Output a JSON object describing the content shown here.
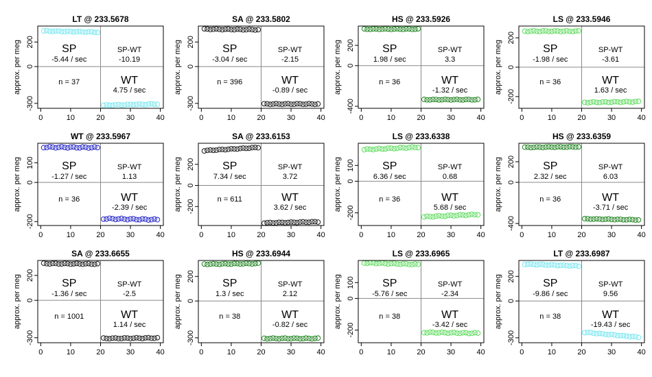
{
  "chart_data": [
    {
      "type": "scatter",
      "title": "LT @ 233.5678",
      "ylabel": "approx. per meg",
      "color": "#7fe8f0",
      "ylim": [
        -340,
        330
      ],
      "yticks": [
        -300,
        0,
        200
      ],
      "xlim": [
        -1,
        41
      ],
      "xticks": [
        0,
        10,
        20,
        30,
        40
      ],
      "sp_label": "SP",
      "sp_rate": "-5.44 / sec",
      "spwt_label": "SP-WT",
      "spwt_value": "-10.19",
      "n_label": "n = 37",
      "wt_label": "WT",
      "wt_rate": "4.75 / sec",
      "sp_points": {
        "x_start": 1,
        "x_end": 19,
        "y_start": 290,
        "y_end": 280
      },
      "wt_points": {
        "x_start": 21,
        "x_end": 39,
        "y_start": -315,
        "y_end": -305
      }
    },
    {
      "type": "scatter",
      "title": "SA @ 233.5802",
      "ylabel": "approx. per meg",
      "color": "#2a2a2a",
      "ylim": [
        -340,
        330
      ],
      "yticks": [
        -300,
        0,
        200
      ],
      "xlim": [
        -1,
        41
      ],
      "xticks": [
        0,
        10,
        20,
        30,
        40
      ],
      "sp_label": "SP",
      "sp_rate": "-3.04 / sec",
      "spwt_label": "SP-WT",
      "spwt_value": "-2.15",
      "n_label": "n = 396",
      "wt_label": "WT",
      "wt_rate": "-0.89 / sec",
      "sp_points": {
        "x_start": 1,
        "x_end": 19,
        "y_start": 305,
        "y_end": 300
      },
      "wt_points": {
        "x_start": 21,
        "x_end": 39,
        "y_start": -305,
        "y_end": -305
      }
    },
    {
      "type": "scatter",
      "title": "HS @ 233.5926",
      "ylabel": "approx. per meg",
      "color": "#2e8b2e",
      "ylim": [
        -420,
        390
      ],
      "yticks": [
        -400,
        0,
        200
      ],
      "xlim": [
        -1,
        41
      ],
      "xticks": [
        0,
        10,
        20,
        30,
        40
      ],
      "sp_points": {
        "x_start": 1,
        "x_end": 19,
        "y_start": 360,
        "y_end": 360
      },
      "wt_points": {
        "x_start": 21,
        "x_end": 39,
        "y_start": -335,
        "y_end": -335
      },
      "sp_label": "SP",
      "sp_rate": "1.98 / sec",
      "spwt_label": "SP-WT",
      "spwt_value": "3.3",
      "n_label": "n = 36",
      "wt_label": "WT",
      "wt_rate": "-1.32 / sec"
    },
    {
      "type": "scatter",
      "title": "LS @ 233.5946",
      "ylabel": "approx. per meg",
      "color": "#66dd66",
      "ylim": [
        -280,
        280
      ],
      "yticks": [
        -200,
        0,
        200
      ],
      "xlim": [
        -1,
        41
      ],
      "xticks": [
        0,
        10,
        20,
        30,
        40
      ],
      "sp_label": "SP",
      "sp_rate": "-1.98 / sec",
      "spwt_label": "SP-WT",
      "spwt_value": "-3.61",
      "n_label": "n = 36",
      "wt_label": "WT",
      "wt_rate": "1.63 / sec",
      "sp_points": {
        "x_start": 1,
        "x_end": 19,
        "y_start": 245,
        "y_end": 245
      },
      "wt_points": {
        "x_start": 21,
        "x_end": 39,
        "y_start": -240,
        "y_end": -235
      }
    },
    {
      "type": "scatter",
      "title": "WT @ 233.5967",
      "ylabel": "approx. per meg",
      "color": "#3333cc",
      "ylim": [
        -220,
        200
      ],
      "yticks": [
        -200,
        0,
        100
      ],
      "xlim": [
        -1,
        41
      ],
      "xticks": [
        0,
        10,
        20,
        30,
        40
      ],
      "sp_label": "SP",
      "sp_rate": "-1.27 / sec",
      "spwt_label": "SP-WT",
      "spwt_value": "1.13",
      "n_label": "n = 36",
      "wt_label": "WT",
      "wt_rate": "-2.39 / sec",
      "sp_points": {
        "x_start": 1,
        "x_end": 19,
        "y_start": 180,
        "y_end": 178
      },
      "wt_points": {
        "x_start": 21,
        "x_end": 39,
        "y_start": -185,
        "y_end": -190
      }
    },
    {
      "type": "scatter",
      "title": "SA @ 233.6153",
      "ylabel": "approx. per meg",
      "color": "#2a2a2a",
      "ylim": [
        -380,
        400
      ],
      "yticks": [
        -200,
        0,
        200
      ],
      "xlim": [
        -1,
        41
      ],
      "xticks": [
        0,
        10,
        20,
        30,
        40
      ],
      "sp_label": "SP",
      "sp_rate": "7.34 / sec",
      "spwt_label": "SP-WT",
      "spwt_value": "3.72",
      "n_label": "n = 611",
      "wt_label": "WT",
      "wt_rate": "3.62 / sec",
      "sp_points": {
        "x_start": 1,
        "x_end": 19,
        "y_start": 330,
        "y_end": 360
      },
      "wt_points": {
        "x_start": 21,
        "x_end": 39,
        "y_start": -355,
        "y_end": -345
      }
    },
    {
      "type": "scatter",
      "title": "LS @ 233.6338",
      "ylabel": "approx. per meg",
      "color": "#66dd66",
      "ylim": [
        -280,
        240
      ],
      "yticks": [
        -200,
        0,
        100
      ],
      "xlim": [
        -1,
        41
      ],
      "xticks": [
        0,
        10,
        20,
        30,
        40
      ],
      "sp_label": "SP",
      "sp_rate": "6.36 / sec",
      "spwt_label": "SP-WT",
      "spwt_value": "0.68",
      "n_label": "n = 36",
      "wt_label": "WT",
      "wt_rate": "5.68 / sec",
      "sp_points": {
        "x_start": 1,
        "x_end": 19,
        "y_start": 200,
        "y_end": 215
      },
      "wt_points": {
        "x_start": 21,
        "x_end": 39,
        "y_start": -225,
        "y_end": -210
      }
    },
    {
      "type": "scatter",
      "title": "HS @ 233.6359",
      "ylabel": "approx. per meg",
      "color": "#2e8b2e",
      "ylim": [
        -420,
        380
      ],
      "yticks": [
        -400,
        0,
        200
      ],
      "xlim": [
        -1,
        41
      ],
      "xticks": [
        0,
        10,
        20,
        30,
        40
      ],
      "sp_label": "SP",
      "sp_rate": "2.32 / sec",
      "spwt_label": "SP-WT",
      "spwt_value": "6.03",
      "n_label": "n = 36",
      "wt_label": "WT",
      "wt_rate": "-3.71 / sec",
      "sp_points": {
        "x_start": 1,
        "x_end": 19,
        "y_start": 340,
        "y_end": 345
      },
      "wt_points": {
        "x_start": 21,
        "x_end": 39,
        "y_start": -355,
        "y_end": -365
      }
    },
    {
      "type": "scatter",
      "title": "SA @ 233.6655",
      "ylabel": "approx. per meg",
      "color": "#2a2a2a",
      "ylim": [
        -340,
        320
      ],
      "yticks": [
        -300,
        0,
        200
      ],
      "xlim": [
        -1,
        41
      ],
      "xticks": [
        0,
        10,
        20,
        30,
        40
      ],
      "sp_label": "SP",
      "sp_rate": "-1.36 / sec",
      "spwt_label": "SP-WT",
      "spwt_value": "-2.5",
      "n_label": "n = 1001",
      "wt_label": "WT",
      "wt_rate": "1.14 / sec",
      "sp_points": {
        "x_start": 1,
        "x_end": 19,
        "y_start": 295,
        "y_end": 292
      },
      "wt_points": {
        "x_start": 21,
        "x_end": 39,
        "y_start": -305,
        "y_end": -302
      }
    },
    {
      "type": "scatter",
      "title": "HS @ 233.6944",
      "ylabel": "approx. per meg",
      "color": "#2e8b2e",
      "ylim": [
        -340,
        330
      ],
      "yticks": [
        -300,
        0,
        200
      ],
      "xlim": [
        -1,
        41
      ],
      "xticks": [
        0,
        10,
        20,
        30,
        40
      ],
      "sp_label": "SP",
      "sp_rate": "1.3 / sec",
      "spwt_label": "SP-WT",
      "spwt_value": "2.12",
      "n_label": "n = 38",
      "wt_label": "WT",
      "wt_rate": "-0.82 / sec",
      "sp_points": {
        "x_start": 1,
        "x_end": 19,
        "y_start": 300,
        "y_end": 305
      },
      "wt_points": {
        "x_start": 21,
        "x_end": 39,
        "y_start": -305,
        "y_end": -305
      }
    },
    {
      "type": "scatter",
      "title": "LS @ 233.6965",
      "ylabel": "approx. per meg",
      "color": "#66dd66",
      "ylim": [
        -280,
        240
      ],
      "yticks": [
        -200,
        0,
        100
      ],
      "xlim": [
        -1,
        41
      ],
      "xticks": [
        0,
        10,
        20,
        30,
        40
      ],
      "sp_label": "SP",
      "sp_rate": "-5.76 / sec",
      "spwt_label": "SP-WT",
      "spwt_value": "-2.34",
      "n_label": "n = 38",
      "wt_label": "WT",
      "wt_rate": "-3.42 / sec",
      "sp_points": {
        "x_start": 1,
        "x_end": 19,
        "y_start": 225,
        "y_end": 215
      },
      "wt_points": {
        "x_start": 21,
        "x_end": 39,
        "y_start": -215,
        "y_end": -220
      }
    },
    {
      "type": "scatter",
      "title": "LT @ 233.6987",
      "ylabel": "approx. per meg",
      "color": "#7fe8f0",
      "ylim": [
        -340,
        330
      ],
      "yticks": [
        -300,
        0,
        200
      ],
      "xlim": [
        -1,
        41
      ],
      "xticks": [
        0,
        10,
        20,
        30,
        40
      ],
      "sp_label": "SP",
      "sp_rate": "-9.86 / sec",
      "spwt_label": "SP-WT",
      "spwt_value": "9.56",
      "n_label": "n = 38",
      "wt_label": "WT",
      "wt_rate": "-19.43 / sec",
      "sp_points": {
        "x_start": 1,
        "x_end": 19,
        "y_start": 300,
        "y_end": 285
      },
      "wt_points": {
        "x_start": 21,
        "x_end": 39,
        "y_start": -255,
        "y_end": -295
      }
    }
  ]
}
